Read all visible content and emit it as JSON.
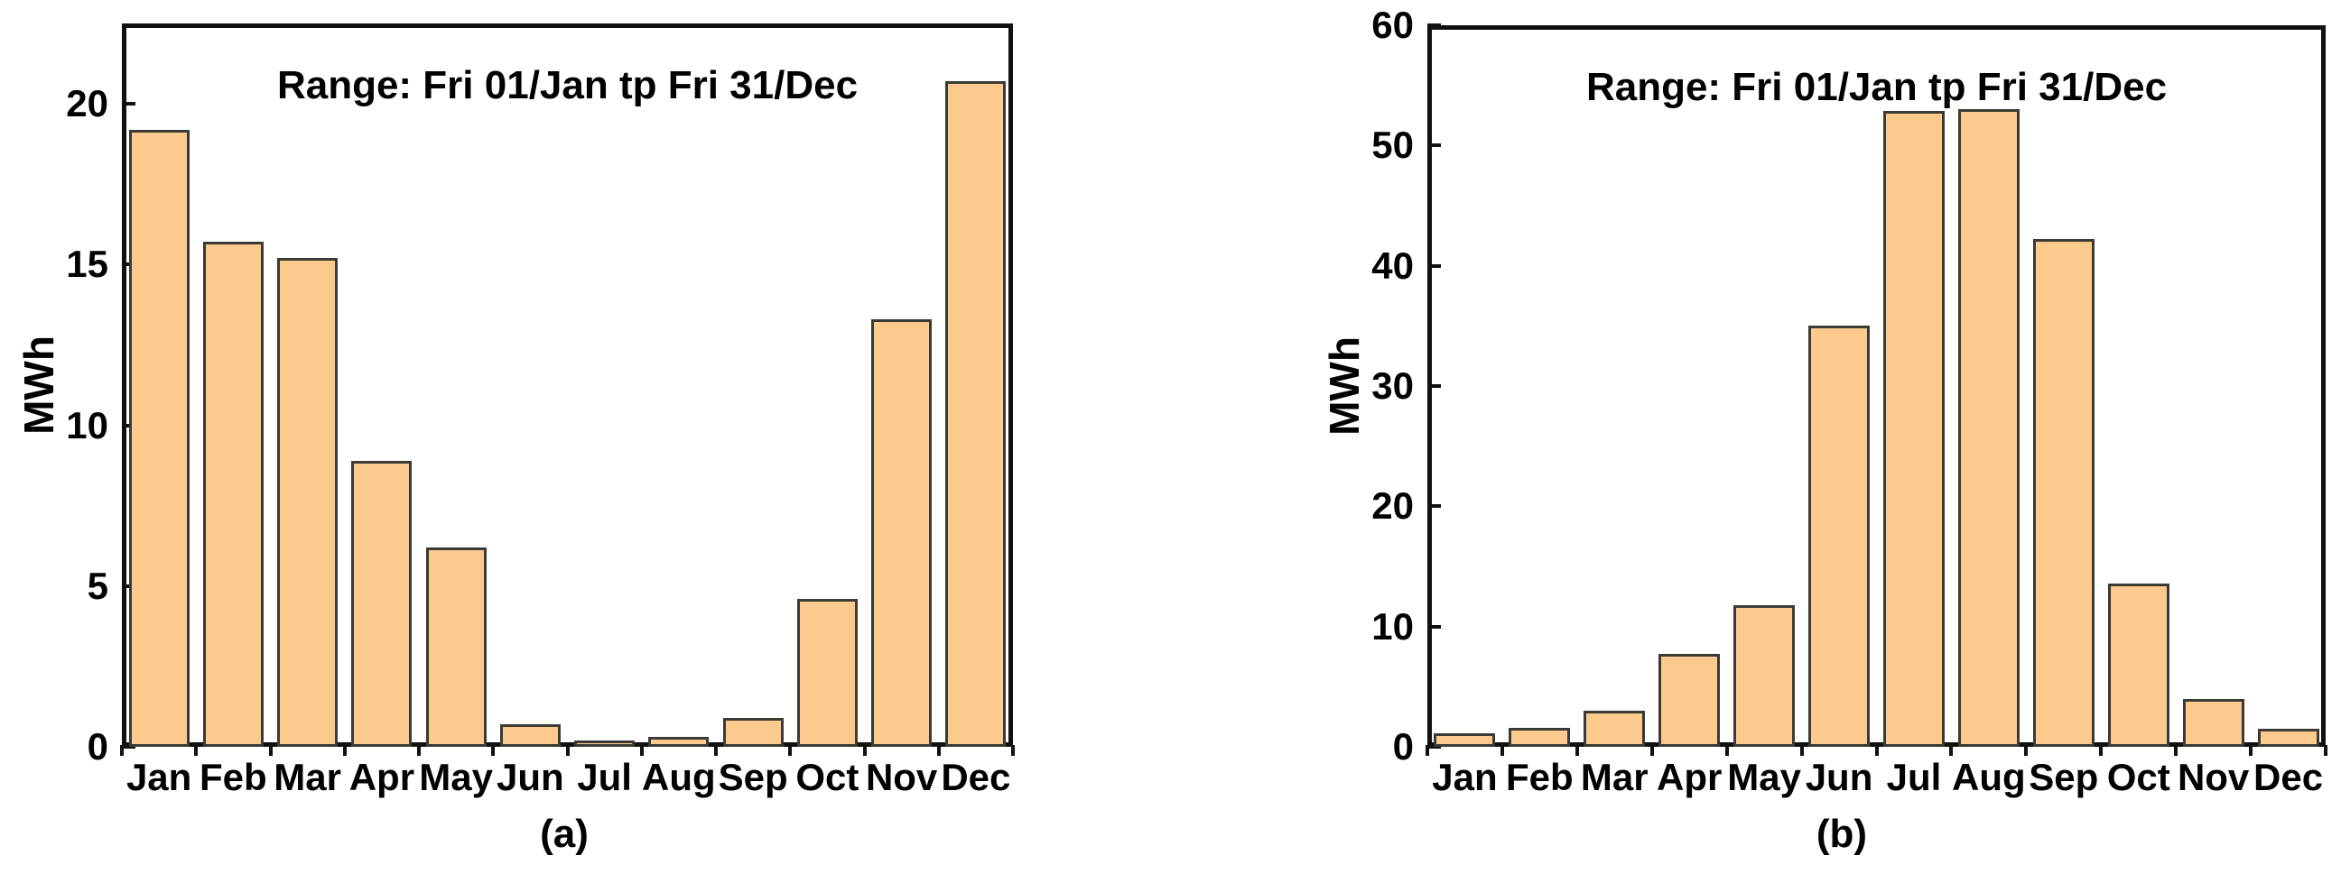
{
  "figure": {
    "background": "#ffffff",
    "bar_fill": "#FBCA8C",
    "bar_border": "#3B3B35",
    "axis_color": "#111111",
    "text_color": "#000000"
  },
  "chart_data": [
    {
      "id": "a",
      "type": "bar",
      "title": "Range: Fri 01/Jan tp Fri 31/Dec",
      "ylabel": "MWh",
      "xlabel": "",
      "caption": "(a)",
      "grid": false,
      "legend": null,
      "categories": [
        "Jan",
        "Feb",
        "Mar",
        "Apr",
        "May",
        "Jun",
        "Jul",
        "Aug",
        "Sep",
        "Oct",
        "Nov",
        "Dec"
      ],
      "values": [
        19.2,
        15.7,
        15.2,
        8.9,
        6.2,
        0.7,
        0.2,
        0.3,
        0.9,
        4.6,
        13.3,
        20.7
      ],
      "ylim": [
        0,
        22.5
      ],
      "yticks": [
        0,
        5,
        10,
        15,
        20
      ]
    },
    {
      "id": "b",
      "type": "bar",
      "title": "Range: Fri 01/Jan tp Fri 31/Dec",
      "ylabel": "MWh",
      "xlabel": "",
      "caption": "(b)",
      "grid": false,
      "legend": null,
      "categories": [
        "Jan",
        "Feb",
        "Mar",
        "Apr",
        "May",
        "Jun",
        "Jul",
        "Aug",
        "Sep",
        "Oct",
        "Nov",
        "Dec"
      ],
      "values": [
        1.1,
        1.6,
        3.0,
        7.7,
        11.8,
        35.0,
        52.9,
        53.0,
        42.2,
        13.6,
        4.0,
        1.5
      ],
      "ylim": [
        0,
        60
      ],
      "yticks": [
        0,
        10,
        20,
        30,
        40,
        50,
        60
      ]
    }
  ]
}
